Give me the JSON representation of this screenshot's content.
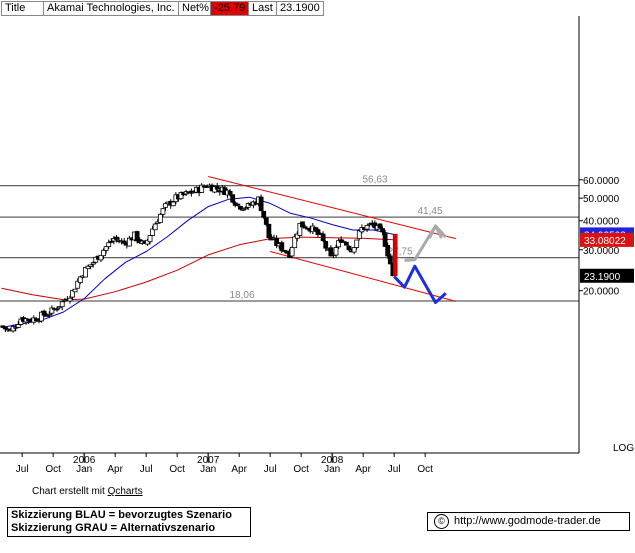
{
  "header": {
    "title_label": "Title",
    "title_value": "Akamai Technologies, Inc.",
    "net_label": "Net%",
    "net_value": "-25.79",
    "last_label": "Last",
    "last_value": "23.1900"
  },
  "footer": {
    "credit_prefix": "Chart erstellt mit ",
    "credit_link": "Qcharts",
    "legend_line1": "Skizzierung BLAU = bevorzugtes Szenario",
    "legend_line2": "Skizzierung GRAU = Alternativszenario",
    "website": "http://www.godmode-trader.de"
  },
  "colors": {
    "price": "#000000",
    "ma_short": "#0000cc",
    "ma_long": "#cc0000",
    "trend_lines": "#ee0000",
    "level_lines": "#606060",
    "scenario_blue": "#1a2fe0",
    "scenario_grey": "#aaaaaa",
    "badge_blue": "#2222dd",
    "badge_red": "#dd1111",
    "badge_black": "#000000"
  },
  "chart_data": {
    "type": "candlestick",
    "title": "Akamai Technologies, Inc.",
    "y_scale": "log",
    "y_scale_label": "LOG",
    "ylim": [
      10.5,
      68
    ],
    "y_ticks": [
      "20.0000",
      "30.0000",
      "40.0000",
      "50.0000",
      "60.0000"
    ],
    "x_month_labels": [
      "Jul",
      "Oct",
      "Jan",
      "Apr",
      "Jul",
      "Oct",
      "Jan",
      "Apr",
      "Jul",
      "Oct",
      "Jan",
      "Apr",
      "Jul",
      "Oct"
    ],
    "x_year_labels": [
      "2006",
      "2007",
      "2008"
    ],
    "x_range": [
      "2005-05",
      "2008-12"
    ],
    "horizontal_levels": [
      {
        "label": "56,63",
        "value": 56.63
      },
      {
        "label": "41,45",
        "value": 41.45
      },
      {
        "label": "27,75",
        "value": 27.75
      },
      {
        "label": "18,06",
        "value": 18.06
      }
    ],
    "price_path": [
      {
        "date": "2005-05",
        "close": 14.1
      },
      {
        "date": "2005-06",
        "close": 13.4
      },
      {
        "date": "2005-07",
        "close": 15.2
      },
      {
        "date": "2005-08",
        "close": 15.0
      },
      {
        "date": "2005-09",
        "close": 15.6
      },
      {
        "date": "2005-10",
        "close": 16.3
      },
      {
        "date": "2005-11",
        "close": 17.8
      },
      {
        "date": "2005-12",
        "close": 19.8
      },
      {
        "date": "2006-01",
        "close": 24.0
      },
      {
        "date": "2006-02",
        "close": 26.5
      },
      {
        "date": "2006-03",
        "close": 30.0
      },
      {
        "date": "2006-04",
        "close": 33.5
      },
      {
        "date": "2006-05",
        "close": 32.0
      },
      {
        "date": "2006-06",
        "close": 34.5
      },
      {
        "date": "2006-07",
        "close": 31.0
      },
      {
        "date": "2006-08",
        "close": 39.0
      },
      {
        "date": "2006-09",
        "close": 46.0
      },
      {
        "date": "2006-10",
        "close": 50.0
      },
      {
        "date": "2006-11",
        "close": 52.0
      },
      {
        "date": "2006-12",
        "close": 54.0
      },
      {
        "date": "2007-01",
        "close": 57.0
      },
      {
        "date": "2007-02",
        "close": 55.0
      },
      {
        "date": "2007-03",
        "close": 53.5
      },
      {
        "date": "2007-04",
        "close": 46.5
      },
      {
        "date": "2007-05",
        "close": 46.0
      },
      {
        "date": "2007-06",
        "close": 49.5
      },
      {
        "date": "2007-07",
        "close": 34.0
      },
      {
        "date": "2007-08",
        "close": 31.0
      },
      {
        "date": "2007-09",
        "close": 29.0
      },
      {
        "date": "2007-10",
        "close": 38.5
      },
      {
        "date": "2007-11",
        "close": 37.5
      },
      {
        "date": "2007-12",
        "close": 34.0
      },
      {
        "date": "2008-01",
        "close": 27.5
      },
      {
        "date": "2008-02",
        "close": 33.5
      },
      {
        "date": "2008-03",
        "close": 30.0
      },
      {
        "date": "2008-04",
        "close": 37.0
      },
      {
        "date": "2008-05",
        "close": 38.5
      },
      {
        "date": "2008-06",
        "close": 35.0
      },
      {
        "date": "2008-07",
        "close": 23.19
      }
    ],
    "ma_short": [
      {
        "date": "2005-05",
        "value": 13.9
      },
      {
        "date": "2005-07",
        "value": 14.4
      },
      {
        "date": "2005-09",
        "value": 15.0
      },
      {
        "date": "2005-11",
        "value": 16.2
      },
      {
        "date": "2006-01",
        "value": 18.5
      },
      {
        "date": "2006-03",
        "value": 22.5
      },
      {
        "date": "2006-05",
        "value": 26.5
      },
      {
        "date": "2006-07",
        "value": 29.5
      },
      {
        "date": "2006-09",
        "value": 34.0
      },
      {
        "date": "2006-11",
        "value": 40.0
      },
      {
        "date": "2007-01",
        "value": 46.0
      },
      {
        "date": "2007-03",
        "value": 49.5
      },
      {
        "date": "2007-05",
        "value": 50.5
      },
      {
        "date": "2007-07",
        "value": 47.5
      },
      {
        "date": "2007-09",
        "value": 43.0
      },
      {
        "date": "2007-11",
        "value": 41.0
      },
      {
        "date": "2008-01",
        "value": 38.5
      },
      {
        "date": "2008-03",
        "value": 36.5
      },
      {
        "date": "2008-05",
        "value": 36.5
      },
      {
        "date": "2008-07",
        "value": 34.9
      }
    ],
    "ma_long": [
      {
        "date": "2005-05",
        "value": 20.5
      },
      {
        "date": "2005-08",
        "value": 19.2
      },
      {
        "date": "2005-11",
        "value": 18.3
      },
      {
        "date": "2006-01",
        "value": 18.4
      },
      {
        "date": "2006-04",
        "value": 19.8
      },
      {
        "date": "2006-07",
        "value": 21.8
      },
      {
        "date": "2006-10",
        "value": 24.5
      },
      {
        "date": "2007-01",
        "value": 28.5
      },
      {
        "date": "2007-04",
        "value": 31.5
      },
      {
        "date": "2007-07",
        "value": 33.5
      },
      {
        "date": "2007-10",
        "value": 34.0
      },
      {
        "date": "2008-01",
        "value": 33.8
      },
      {
        "date": "2008-04",
        "value": 33.6
      },
      {
        "date": "2008-07",
        "value": 33.1
      }
    ],
    "trend_lines": [
      {
        "from": {
          "date": "2007-01",
          "value": 62.0
        },
        "to": {
          "date": "2008-12",
          "value": 33.5
        }
      },
      {
        "from": {
          "date": "2007-07",
          "value": 29.5
        },
        "to": {
          "date": "2008-12",
          "value": 18.0
        }
      }
    ],
    "scenario_blue": [
      {
        "date": "2008-07",
        "value": 23.0
      },
      {
        "date": "2008-08",
        "value": 20.7
      },
      {
        "date": "2008-09",
        "value": 25.5
      },
      {
        "date": "2008-11",
        "value": 17.8
      },
      {
        "date": "2008-12",
        "value": 19.5
      }
    ],
    "scenario_grey": [
      {
        "date": "2008-08",
        "value": 27.0
      },
      {
        "date": "2008-09",
        "value": 27.2
      },
      {
        "date": "2008-11",
        "value": 38.0
      },
      {
        "date": "2008-12",
        "value": 34.0
      }
    ],
    "last_value_badges": [
      {
        "label": "34.92502",
        "value": 34.92502,
        "style": "blue"
      },
      {
        "label": "33.08022",
        "value": 33.08022,
        "style": "red"
      },
      {
        "label": "23.1900",
        "value": 23.19,
        "style": "black"
      }
    ]
  }
}
